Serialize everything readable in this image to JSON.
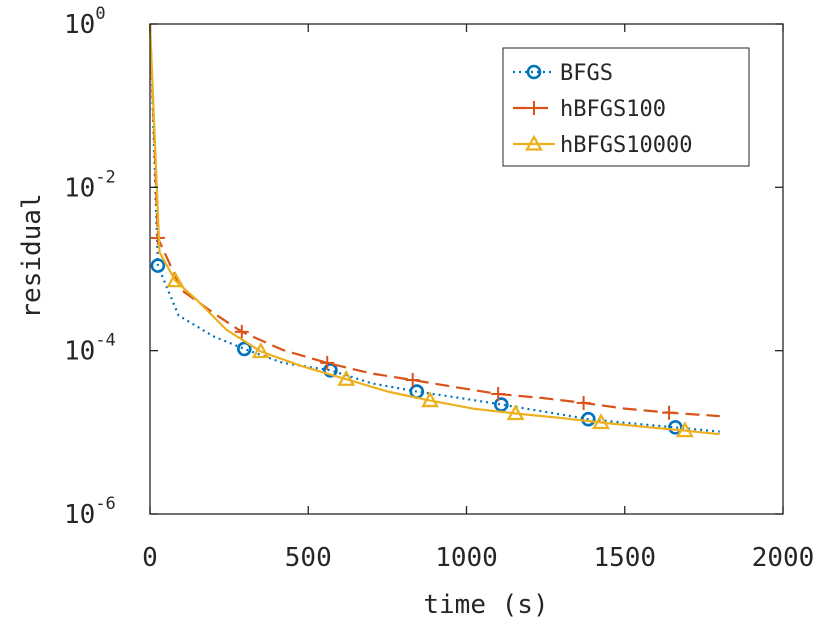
{
  "chart_data": {
    "type": "line",
    "title": "",
    "xlabel": "time (s)",
    "ylabel": "residual",
    "xlim": [
      0,
      2000
    ],
    "ylim": [
      1e-06,
      1
    ],
    "yscale": "log",
    "grid": false,
    "box": true,
    "legend_position": "top-right",
    "x_ticks": [
      0,
      500,
      1000,
      1500,
      2000
    ],
    "x_tick_labels": [
      "0",
      "500",
      "1000",
      "1500",
      "2000"
    ],
    "y_ticks": [
      1e-06,
      0.0001,
      0.01,
      1
    ],
    "y_tick_labels": [
      {
        "base": "10",
        "exp": "-6"
      },
      {
        "base": "10",
        "exp": "-4"
      },
      {
        "base": "10",
        "exp": "-2"
      },
      {
        "base": "10",
        "exp": "0"
      }
    ],
    "series": [
      {
        "name": "BFGS",
        "color": "#0072BD",
        "line": "dotted",
        "marker": "circle",
        "x": [
          0,
          25,
          90,
          200,
          298,
          420,
          570,
          700,
          843,
          980,
          1110,
          1250,
          1385,
          1520,
          1660,
          1800
        ],
        "y": [
          1,
          0.0011,
          0.00027,
          0.00015,
          0.000105,
          7.08e-05,
          5.75e-05,
          3.98e-05,
          3.16e-05,
          2.63e-05,
          2.19e-05,
          1.78e-05,
          1.45e-05,
          1.29e-05,
          1.15e-05,
          1.02e-05
        ],
        "marker_x": [
          25,
          298,
          570,
          843,
          1110,
          1385,
          1660
        ],
        "marker_y": [
          0.0011,
          0.000105,
          5.75e-05,
          3.16e-05,
          2.19e-05,
          1.45e-05,
          1.15e-05
        ]
      },
      {
        "name": "hBFGS100",
        "color": "#D95319",
        "line": "dashed",
        "marker": "plus",
        "x": [
          0,
          25,
          100,
          200,
          290,
          420,
          560,
          700,
          830,
          970,
          1100,
          1240,
          1370,
          1500,
          1640,
          1800
        ],
        "y": [
          1,
          0.0024,
          0.00055,
          0.00029,
          0.00017,
          0.000102,
          7.08e-05,
          5.25e-05,
          4.37e-05,
          3.55e-05,
          2.95e-05,
          2.63e-05,
          2.29e-05,
          1.95e-05,
          1.74e-05,
          1.58e-05
        ],
        "marker_x": [
          25,
          290,
          560,
          830,
          1100,
          1370,
          1640
        ],
        "marker_y": [
          0.0024,
          0.00017,
          7.08e-05,
          4.37e-05,
          2.95e-05,
          2.29e-05,
          1.74e-05
        ]
      },
      {
        "name": "hBFGS10000",
        "color": "#EDB120",
        "line": "solid",
        "marker": "triangle",
        "x": [
          0,
          30,
          80,
          150,
          240,
          350,
          480,
          620,
          750,
          885,
          1020,
          1155,
          1290,
          1425,
          1560,
          1690,
          1800
        ],
        "y": [
          1,
          0.0016,
          0.00072,
          0.00041,
          0.000182,
          9.77e-05,
          6.46e-05,
          4.47e-05,
          3.16e-05,
          2.45e-05,
          1.95e-05,
          1.7e-05,
          1.51e-05,
          1.32e-05,
          1.17e-05,
          1.05e-05,
          9.5e-06
        ],
        "marker_x": [
          80,
          350,
          620,
          885,
          1155,
          1425,
          1690
        ],
        "marker_y": [
          0.00072,
          9.77e-05,
          4.47e-05,
          2.45e-05,
          1.7e-05,
          1.32e-05,
          1.05e-05
        ]
      }
    ]
  }
}
